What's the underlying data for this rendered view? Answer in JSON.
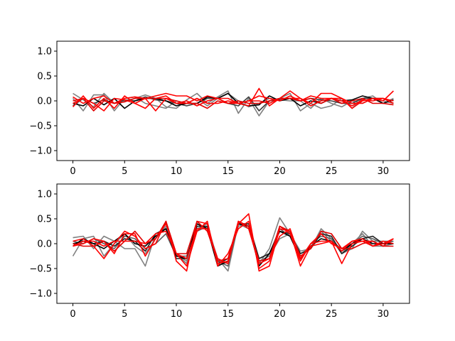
{
  "chart_data": [
    {
      "type": "line",
      "xlim": [
        -1.55,
        32.55
      ],
      "ylim": [
        -1.2,
        1.2
      ],
      "xticks": [
        0,
        5,
        10,
        15,
        20,
        25,
        30
      ],
      "yticks": [
        -1.0,
        -0.5,
        0.0,
        0.5,
        1.0
      ],
      "xtick_labels": [
        "0",
        "5",
        "10",
        "15",
        "20",
        "25",
        "30"
      ],
      "ytick_labels": [
        "−1.0",
        "−0.5",
        "0.0",
        "0.5",
        "1.0"
      ],
      "grid": false,
      "x": [
        0,
        1,
        2,
        3,
        4,
        5,
        6,
        7,
        8,
        9,
        10,
        11,
        12,
        13,
        14,
        15,
        16,
        17,
        18,
        19,
        20,
        21,
        22,
        23,
        24,
        25,
        26,
        27,
        28,
        29,
        30,
        31
      ],
      "series": [
        {
          "color": "#808080",
          "values": [
            0.15,
            0.02,
            -0.12,
            0.15,
            -0.05,
            0.0,
            0.05,
            0.12,
            0.05,
            -0.12,
            -0.15,
            0.02,
            0.15,
            -0.05,
            0.08,
            0.2,
            -0.25,
            0.05,
            -0.3,
            0.0,
            0.05,
            0.15,
            -0.2,
            -0.05,
            -0.15,
            -0.1,
            0.05,
            -0.15,
            0.05,
            0.1,
            -0.05,
            0.05
          ]
        },
        {
          "color": "#808080",
          "values": [
            0.05,
            -0.2,
            0.12,
            0.12,
            -0.2,
            0.05,
            0.08,
            -0.05,
            -0.1,
            -0.15,
            0.0,
            -0.05,
            0.05,
            -0.1,
            0.05,
            0.15,
            0.0,
            -0.12,
            -0.05,
            0.05,
            0.02,
            0.0,
            0.0,
            -0.15,
            0.05,
            -0.05,
            -0.12,
            0.0,
            -0.05,
            0.05,
            0.0,
            -0.05
          ]
        },
        {
          "color": "#404040",
          "values": [
            -0.1,
            0.05,
            -0.05,
            0.02,
            -0.05,
            0.02,
            0.0,
            0.08,
            0.02,
            0.0,
            -0.05,
            -0.1,
            -0.05,
            0.05,
            0.05,
            -0.05,
            -0.1,
            0.08,
            -0.2,
            0.0,
            0.02,
            0.05,
            0.0,
            0.05,
            0.02,
            0.0,
            -0.05,
            -0.05,
            0.05,
            0.05,
            0.05,
            -0.05
          ]
        },
        {
          "color": "#000000",
          "values": [
            -0.05,
            -0.1,
            0.05,
            -0.08,
            0.05,
            -0.15,
            0.0,
            0.05,
            0.05,
            0.0,
            -0.1,
            -0.05,
            -0.05,
            0.08,
            0.05,
            0.15,
            -0.05,
            -0.1,
            -0.08,
            0.1,
            0.0,
            0.05,
            -0.1,
            0.0,
            -0.05,
            0.05,
            0.0,
            0.02,
            0.1,
            0.05,
            -0.05,
            0.02
          ]
        },
        {
          "color": "#ff0000",
          "values": [
            -0.12,
            0.1,
            -0.15,
            0.05,
            -0.15,
            0.1,
            -0.05,
            -0.15,
            0.05,
            0.1,
            -0.05,
            0.0,
            -0.1,
            0.0,
            0.05,
            -0.05,
            -0.05,
            0.0,
            0.0,
            -0.05,
            0.05,
            0.2,
            0.05,
            -0.1,
            0.0,
            0.05,
            0.05,
            -0.15,
            0.0,
            0.05,
            0.0,
            0.2
          ]
        },
        {
          "color": "#ff0000",
          "values": [
            0.08,
            -0.05,
            0.05,
            0.1,
            -0.05,
            0.05,
            0.08,
            0.05,
            0.1,
            0.15,
            0.1,
            0.1,
            0.0,
            0.1,
            0.05,
            0.05,
            -0.05,
            -0.1,
            0.25,
            -0.1,
            0.05,
            0.05,
            0.05,
            -0.05,
            0.15,
            0.15,
            0.05,
            -0.05,
            -0.05,
            0.05,
            0.05,
            0.0
          ]
        },
        {
          "color": "#e00000",
          "values": [
            0.0,
            0.05,
            -0.2,
            0.0,
            -0.05,
            -0.02,
            0.05,
            0.05,
            0.05,
            0.05,
            0.0,
            -0.05,
            -0.05,
            -0.15,
            0.0,
            -0.05,
            0.0,
            -0.05,
            -0.05,
            0.0,
            0.05,
            0.05,
            0.0,
            0.05,
            -0.05,
            0.05,
            -0.05,
            0.0,
            0.05,
            -0.05,
            -0.05,
            -0.08
          ]
        },
        {
          "color": "#ff0000",
          "values": [
            -0.05,
            0.05,
            -0.05,
            -0.2,
            0.05,
            0.02,
            -0.05,
            0.05,
            -0.2,
            0.05,
            -0.05,
            -0.05,
            0.05,
            -0.05,
            -0.05,
            0.0,
            -0.05,
            0.0,
            0.1,
            0.05,
            0.0,
            0.1,
            0.0,
            0.1,
            0.05,
            0.05,
            0.0,
            -0.1,
            0.02,
            0.0,
            0.05,
            -0.05
          ]
        }
      ]
    },
    {
      "type": "line",
      "xlim": [
        -1.55,
        32.55
      ],
      "ylim": [
        -1.2,
        1.2
      ],
      "xticks": [
        0,
        5,
        10,
        15,
        20,
        25,
        30
      ],
      "yticks": [
        -1.0,
        -0.5,
        0.0,
        0.5,
        1.0
      ],
      "xtick_labels": [
        "0",
        "5",
        "10",
        "15",
        "20",
        "25",
        "30"
      ],
      "ytick_labels": [
        "−1.0",
        "−0.5",
        "0.0",
        "0.5",
        "1.0"
      ],
      "grid": false,
      "x": [
        0,
        1,
        2,
        3,
        4,
        5,
        6,
        7,
        8,
        9,
        10,
        11,
        12,
        13,
        14,
        15,
        16,
        17,
        18,
        19,
        20,
        21,
        22,
        23,
        24,
        25,
        26,
        27,
        28,
        29,
        30,
        31
      ],
      "series": [
        {
          "color": "#808080",
          "values": [
            0.12,
            0.15,
            -0.1,
            0.15,
            0.05,
            -0.1,
            -0.1,
            -0.45,
            0.2,
            0.3,
            -0.2,
            -0.4,
            0.3,
            0.35,
            -0.3,
            -0.55,
            0.4,
            0.3,
            -0.4,
            -0.1,
            0.52,
            0.2,
            -0.2,
            -0.1,
            0.3,
            0.1,
            -0.2,
            -0.1,
            0.25,
            0.05,
            0.05,
            0.05
          ]
        },
        {
          "color": "#808080",
          "values": [
            -0.25,
            0.1,
            0.15,
            -0.25,
            0.0,
            0.2,
            -0.05,
            -0.2,
            0.1,
            0.35,
            -0.2,
            -0.35,
            0.3,
            0.4,
            -0.35,
            -0.4,
            0.35,
            0.4,
            -0.35,
            -0.25,
            0.1,
            0.2,
            -0.15,
            -0.1,
            0.25,
            0.05,
            -0.1,
            0.0,
            0.2,
            -0.05,
            -0.05,
            0.0
          ]
        },
        {
          "color": "#606060",
          "values": [
            0.05,
            0.0,
            0.1,
            0.0,
            -0.1,
            0.15,
            0.1,
            -0.1,
            0.0,
            0.2,
            -0.25,
            -0.25,
            0.25,
            0.35,
            -0.35,
            -0.45,
            0.4,
            0.35,
            -0.3,
            -0.2,
            0.3,
            0.15,
            -0.3,
            0.0,
            0.15,
            0.1,
            -0.2,
            0.0,
            0.15,
            0.1,
            0.0,
            0.05
          ]
        },
        {
          "color": "#202020",
          "values": [
            0.0,
            0.05,
            0.0,
            0.05,
            -0.05,
            0.1,
            0.05,
            -0.15,
            0.2,
            0.3,
            -0.3,
            -0.3,
            0.35,
            0.35,
            -0.4,
            -0.3,
            0.4,
            0.4,
            -0.3,
            -0.2,
            0.25,
            0.2,
            -0.2,
            -0.1,
            0.2,
            0.15,
            -0.2,
            -0.05,
            0.1,
            0.15,
            0.0,
            0.0
          ]
        },
        {
          "color": "#000000",
          "values": [
            -0.05,
            0.1,
            0.0,
            -0.1,
            0.05,
            0.2,
            0.0,
            -0.05,
            0.15,
            0.3,
            -0.25,
            -0.3,
            0.4,
            0.3,
            -0.45,
            -0.35,
            0.4,
            0.35,
            -0.45,
            -0.2,
            0.25,
            0.15,
            -0.3,
            -0.05,
            0.1,
            0.05,
            -0.15,
            0.0,
            0.1,
            0.0,
            0.0,
            0.0
          ]
        },
        {
          "color": "#ff0000",
          "values": [
            0.05,
            0.1,
            -0.05,
            -0.3,
            0.0,
            0.25,
            0.15,
            -0.1,
            0.0,
            0.45,
            -0.35,
            -0.55,
            0.45,
            0.4,
            -0.4,
            -0.35,
            0.4,
            0.6,
            -0.55,
            -0.45,
            0.3,
            0.25,
            -0.45,
            -0.05,
            0.0,
            0.05,
            -0.4,
            0.0,
            0.05,
            0.05,
            -0.05,
            0.1
          ]
        },
        {
          "color": "#ff0000",
          "values": [
            -0.05,
            0.0,
            0.1,
            0.05,
            -0.2,
            0.2,
            0.2,
            -0.25,
            0.1,
            0.4,
            -0.2,
            -0.45,
            0.25,
            0.45,
            -0.45,
            -0.2,
            0.3,
            0.45,
            -0.5,
            -0.35,
            0.35,
            0.2,
            -0.35,
            0.0,
            0.05,
            0.05,
            -0.15,
            0.05,
            0.05,
            -0.05,
            0.0,
            0.1
          ]
        },
        {
          "color": "#e00000",
          "values": [
            0.0,
            -0.05,
            -0.05,
            0.05,
            -0.15,
            0.05,
            0.25,
            0.0,
            0.1,
            0.45,
            -0.2,
            -0.2,
            0.45,
            0.25,
            -0.35,
            -0.3,
            0.45,
            0.35,
            -0.35,
            -0.3,
            0.35,
            0.25,
            -0.25,
            -0.1,
            0.25,
            0.2,
            -0.1,
            -0.1,
            0.0,
            0.05,
            -0.05,
            -0.05
          ]
        },
        {
          "color": "#ff0000",
          "values": [
            -0.05,
            0.05,
            0.05,
            -0.05,
            0.05,
            0.05,
            0.05,
            0.0,
            0.2,
            0.25,
            -0.2,
            -0.3,
            0.3,
            0.3,
            -0.3,
            -0.4,
            0.45,
            0.3,
            -0.4,
            -0.3,
            0.15,
            0.3,
            -0.3,
            0.0,
            0.2,
            0.0,
            -0.1,
            0.05,
            0.1,
            -0.05,
            0.05,
            0.0
          ]
        }
      ]
    }
  ]
}
